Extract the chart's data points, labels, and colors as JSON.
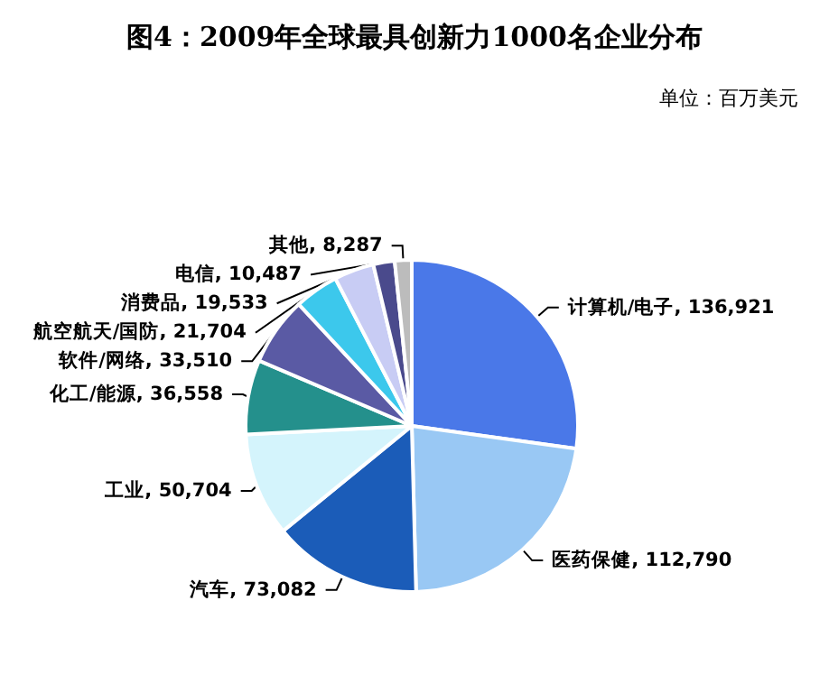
{
  "chart_data": {
    "type": "pie",
    "title": "图4：2009年全球最具创新力1000名企业分布",
    "subtitle": "单位：百万美元",
    "categories": [
      "计算机/电子",
      "医药保健",
      "汽车",
      "工业",
      "化工/能源",
      "软件/网络",
      "航空航天/国防",
      "消费品",
      "电信",
      "其他"
    ],
    "values": [
      136921,
      112790,
      73082,
      50704,
      36558,
      33510,
      21704,
      19533,
      10487,
      8287
    ],
    "value_labels": [
      "136,921",
      "112,790",
      "73,082",
      "50,704",
      "36,558",
      "33,510",
      "21,704",
      "19,533",
      "10,487",
      "8,287"
    ],
    "colors": [
      "#4a78e8",
      "#99c8f4",
      "#1b5cb8",
      "#d4f4fc",
      "#24908c",
      "#5a5aa4",
      "#3cc8ec",
      "#c8ccf4",
      "#4a4a8c",
      "#bcbcbc"
    ],
    "legend": false
  }
}
